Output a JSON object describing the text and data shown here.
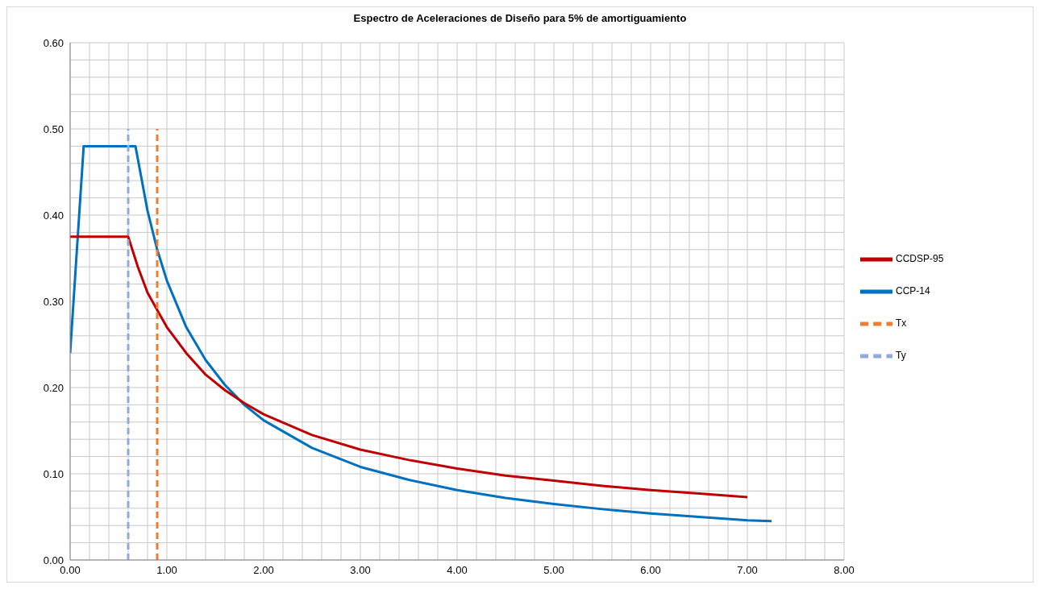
{
  "chart_data": {
    "type": "line",
    "title": "Espectro de Aceleraciones de Diseño para 5% de amortiguamiento",
    "xlim": [
      0,
      8
    ],
    "xticks": [
      {
        "value": 0,
        "label": "0.00"
      },
      {
        "value": 0.2,
        "label": null
      },
      {
        "value": 0.4,
        "label": null
      },
      {
        "value": 0.6,
        "label": null
      },
      {
        "value": 0.8,
        "label": null
      },
      {
        "value": 1,
        "label": "1.00"
      },
      {
        "value": 1.2,
        "label": null
      },
      {
        "value": 1.4,
        "label": null
      },
      {
        "value": 1.6,
        "label": null
      },
      {
        "value": 1.8,
        "label": null
      },
      {
        "value": 2,
        "label": "2.00"
      },
      {
        "value": 2.2,
        "label": null
      },
      {
        "value": 2.4,
        "label": null
      },
      {
        "value": 2.6,
        "label": null
      },
      {
        "value": 2.8,
        "label": null
      },
      {
        "value": 3,
        "label": "3.00"
      },
      {
        "value": 3.2,
        "label": null
      },
      {
        "value": 3.4,
        "label": null
      },
      {
        "value": 3.6,
        "label": null
      },
      {
        "value": 3.8,
        "label": null
      },
      {
        "value": 4,
        "label": "4.00"
      },
      {
        "value": 4.2,
        "label": null
      },
      {
        "value": 4.4,
        "label": null
      },
      {
        "value": 4.6,
        "label": null
      },
      {
        "value": 4.8,
        "label": null
      },
      {
        "value": 5,
        "label": "5.00"
      },
      {
        "value": 5.2,
        "label": null
      },
      {
        "value": 5.4,
        "label": null
      },
      {
        "value": 5.6,
        "label": null
      },
      {
        "value": 5.8,
        "label": null
      },
      {
        "value": 6,
        "label": "6.00"
      },
      {
        "value": 6.2,
        "label": null
      },
      {
        "value": 6.4,
        "label": null
      },
      {
        "value": 6.6,
        "label": null
      },
      {
        "value": 6.8,
        "label": null
      },
      {
        "value": 7,
        "label": "7.00"
      },
      {
        "value": 7.2,
        "label": null
      },
      {
        "value": 7.4,
        "label": null
      },
      {
        "value": 7.6,
        "label": null
      },
      {
        "value": 7.8,
        "label": null
      },
      {
        "value": 8,
        "label": "8.00"
      }
    ],
    "ylim": [
      0,
      0.6
    ],
    "yticks": [
      {
        "value": 0,
        "label": "0.00"
      },
      {
        "value": 0.02,
        "label": null
      },
      {
        "value": 0.04,
        "label": null
      },
      {
        "value": 0.06,
        "label": null
      },
      {
        "value": 0.08,
        "label": null
      },
      {
        "value": 0.1,
        "label": "0.10"
      },
      {
        "value": 0.12,
        "label": null
      },
      {
        "value": 0.14,
        "label": null
      },
      {
        "value": 0.16,
        "label": null
      },
      {
        "value": 0.18,
        "label": null
      },
      {
        "value": 0.2,
        "label": "0.20"
      },
      {
        "value": 0.22,
        "label": null
      },
      {
        "value": 0.24,
        "label": null
      },
      {
        "value": 0.26,
        "label": null
      },
      {
        "value": 0.28,
        "label": null
      },
      {
        "value": 0.3,
        "label": "0.30"
      },
      {
        "value": 0.32,
        "label": null
      },
      {
        "value": 0.34,
        "label": null
      },
      {
        "value": 0.36,
        "label": null
      },
      {
        "value": 0.38,
        "label": null
      },
      {
        "value": 0.4,
        "label": "0.40"
      },
      {
        "value": 0.42,
        "label": null
      },
      {
        "value": 0.44,
        "label": null
      },
      {
        "value": 0.46,
        "label": null
      },
      {
        "value": 0.48,
        "label": null
      },
      {
        "value": 0.5,
        "label": "0.50"
      },
      {
        "value": 0.52,
        "label": null
      },
      {
        "value": 0.54,
        "label": null
      },
      {
        "value": 0.56,
        "label": null
      },
      {
        "value": 0.58,
        "label": null
      },
      {
        "value": 0.6,
        "label": "0.60"
      }
    ],
    "grid": true,
    "legend": "right",
    "marker": "none",
    "series": [
      {
        "name": "CCP-14",
        "color": "#0070c0",
        "line_style": "solid",
        "x": [
          0,
          0.14,
          0.675,
          0.8,
          0.9,
          1,
          1.2,
          1.4,
          1.6,
          1.8,
          2,
          2.5,
          3,
          3.5,
          4,
          4.5,
          5,
          5.5,
          6,
          6.5,
          7,
          7.25
        ],
        "values": [
          0.24,
          0.48,
          0.48,
          0.405,
          0.36,
          0.324,
          0.27,
          0.232,
          0.203,
          0.18,
          0.162,
          0.13,
          0.108,
          0.093,
          0.081,
          0.072,
          0.065,
          0.059,
          0.054,
          0.05,
          0.046,
          0.045
        ]
      },
      {
        "name": "CCDSP-95",
        "color": "#c00000",
        "line_style": "solid",
        "x": [
          0,
          0.6,
          0.7,
          0.8,
          0.9,
          1,
          1.2,
          1.4,
          1.6,
          1.8,
          2,
          2.5,
          3,
          3.5,
          4,
          4.5,
          5,
          5.5,
          6,
          6.5,
          7
        ],
        "values": [
          0.375,
          0.375,
          0.34,
          0.31,
          0.29,
          0.27,
          0.24,
          0.215,
          0.197,
          0.182,
          0.169,
          0.145,
          0.128,
          0.116,
          0.106,
          0.098,
          0.092,
          0.086,
          0.081,
          0.077,
          0.073
        ]
      },
      {
        "name": "Tx",
        "color": "#ed7d31",
        "line_style": "dashed",
        "x": [
          0.9,
          0.9
        ],
        "values": [
          0,
          0.5
        ]
      },
      {
        "name": "Ty",
        "color": "#8faadc",
        "line_style": "dashed",
        "x": [
          0.6,
          0.6
        ],
        "values": [
          0,
          0.5
        ]
      }
    ]
  }
}
